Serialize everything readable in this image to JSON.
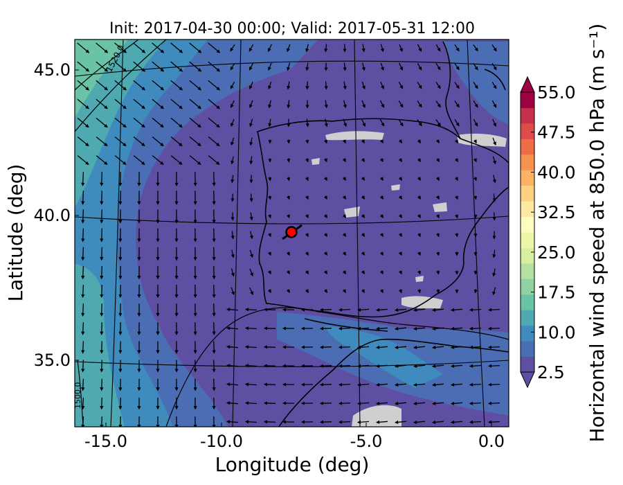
{
  "title": "Init: 2017-04-30 00:00; Valid: 2017-05-31 12:00",
  "x_axis": {
    "label": "Longitude (deg)",
    "ticks": [
      "-15.0",
      "-10.0",
      "-5.0",
      "0.0"
    ],
    "tick_values": [
      -15,
      -10,
      -5,
      0
    ]
  },
  "y_axis": {
    "label": "Latitude (deg)",
    "ticks": [
      "45.0",
      "40.0",
      "35.0"
    ],
    "tick_values": [
      45,
      40,
      35
    ]
  },
  "colorbar": {
    "label": "Horizontal wind speed at 850.0 hPa (m s⁻¹)",
    "ticks": [
      "55.0",
      "47.5",
      "40.0",
      "32.5",
      "25.0",
      "17.5",
      "10.0",
      "2.5"
    ],
    "range": [
      2.5,
      55.0
    ],
    "extend": "both",
    "colors": [
      "#5e4fa2",
      "#4a6db3",
      "#3f8bbd",
      "#4ea9b1",
      "#6ac3a7",
      "#8fd3a4",
      "#b4e1a2",
      "#d6efa1",
      "#eef7a8",
      "#fdfdbf",
      "#fee9a2",
      "#fed183",
      "#fdb365",
      "#f8924f",
      "#ee6d46",
      "#dd4c4a",
      "#c3314a",
      "#9e0142"
    ]
  },
  "contour_labels": [
    "1520.0",
    "1500.0"
  ],
  "point_marker": {
    "color": "#ff0000",
    "longitude": -7.7,
    "latitude": 39.3
  },
  "colors": {
    "land_missing": "#cfcfcf",
    "calm": "#5e4fa2",
    "light": "#4a6db3",
    "moderate": "#3f8bbd",
    "fresh": "#4ea9b1",
    "strong": "#6ac3a7"
  }
}
